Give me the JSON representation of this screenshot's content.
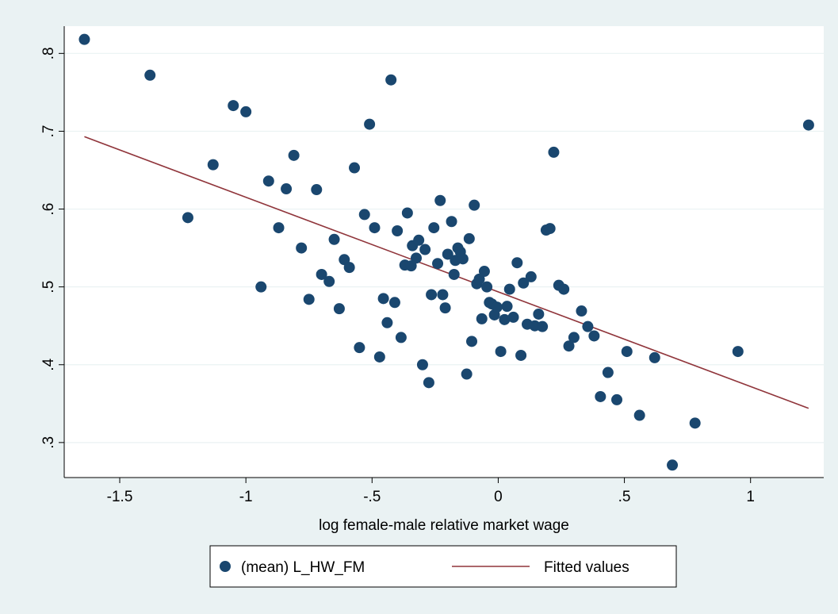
{
  "chart_data": {
    "type": "scatter",
    "xlabel": "log female-male relative market wage",
    "ylabel": "",
    "xlim": [
      -1.72,
      1.29
    ],
    "ylim": [
      0.255,
      0.835
    ],
    "xticks": [
      -1.5,
      -1,
      -0.5,
      0,
      0.5,
      1
    ],
    "xtick_labels": [
      "-1.5",
      "-1",
      "-.5",
      "0",
      ".5",
      "1"
    ],
    "yticks": [
      0.3,
      0.4,
      0.5,
      0.6,
      0.7,
      0.8
    ],
    "ytick_labels": [
      ".3",
      ".4",
      ".5",
      ".6",
      ".7",
      ".8"
    ],
    "grid": "horizontal",
    "legend_position": "bottom",
    "colors": {
      "background": "#eaf2f3",
      "plot_background": "#ffffff",
      "points": "#1a476f",
      "fit_line": "#90353b",
      "grid": "#eaf2f3"
    },
    "series": [
      {
        "name": "(mean) L_HW_FM",
        "kind": "scatter",
        "points": [
          [
            -1.64,
            0.818
          ],
          [
            -1.38,
            0.772
          ],
          [
            -1.23,
            0.589
          ],
          [
            -1.13,
            0.657
          ],
          [
            -1.05,
            0.733
          ],
          [
            -1.0,
            0.725
          ],
          [
            -0.94,
            0.5
          ],
          [
            -0.91,
            0.636
          ],
          [
            -0.87,
            0.576
          ],
          [
            -0.84,
            0.626
          ],
          [
            -0.81,
            0.669
          ],
          [
            -0.78,
            0.55
          ],
          [
            -0.75,
            0.484
          ],
          [
            -0.72,
            0.625
          ],
          [
            -0.7,
            0.516
          ],
          [
            -0.67,
            0.507
          ],
          [
            -0.65,
            0.561
          ],
          [
            -0.63,
            0.472
          ],
          [
            -0.61,
            0.535
          ],
          [
            -0.59,
            0.525
          ],
          [
            -0.57,
            0.653
          ],
          [
            -0.55,
            0.422
          ],
          [
            -0.53,
            0.593
          ],
          [
            -0.51,
            0.709
          ],
          [
            -0.49,
            0.576
          ],
          [
            -0.47,
            0.41
          ],
          [
            -0.455,
            0.485
          ],
          [
            -0.44,
            0.454
          ],
          [
            -0.425,
            0.766
          ],
          [
            -0.41,
            0.48
          ],
          [
            -0.4,
            0.572
          ],
          [
            -0.385,
            0.435
          ],
          [
            -0.37,
            0.528
          ],
          [
            -0.36,
            0.595
          ],
          [
            -0.345,
            0.527
          ],
          [
            -0.34,
            0.553
          ],
          [
            -0.325,
            0.537
          ],
          [
            -0.315,
            0.56
          ],
          [
            -0.3,
            0.4
          ],
          [
            -0.29,
            0.548
          ],
          [
            -0.275,
            0.377
          ],
          [
            -0.265,
            0.49
          ],
          [
            -0.255,
            0.576
          ],
          [
            -0.24,
            0.53
          ],
          [
            -0.23,
            0.611
          ],
          [
            -0.22,
            0.49
          ],
          [
            -0.21,
            0.473
          ],
          [
            -0.2,
            0.542
          ],
          [
            -0.185,
            0.584
          ],
          [
            -0.175,
            0.516
          ],
          [
            -0.17,
            0.534
          ],
          [
            -0.16,
            0.55
          ],
          [
            -0.15,
            0.545
          ],
          [
            -0.14,
            0.536
          ],
          [
            -0.125,
            0.388
          ],
          [
            -0.115,
            0.562
          ],
          [
            -0.105,
            0.43
          ],
          [
            -0.095,
            0.605
          ],
          [
            -0.085,
            0.504
          ],
          [
            -0.075,
            0.51
          ],
          [
            -0.065,
            0.459
          ],
          [
            -0.055,
            0.52
          ],
          [
            -0.045,
            0.5
          ],
          [
            -0.035,
            0.48
          ],
          [
            -0.025,
            0.478
          ],
          [
            -0.015,
            0.464
          ],
          [
            -0.005,
            0.474
          ],
          [
            0.01,
            0.417
          ],
          [
            0.025,
            0.458
          ],
          [
            0.035,
            0.475
          ],
          [
            0.045,
            0.497
          ],
          [
            0.06,
            0.461
          ],
          [
            0.075,
            0.531
          ],
          [
            0.09,
            0.412
          ],
          [
            0.1,
            0.505
          ],
          [
            0.115,
            0.452
          ],
          [
            0.13,
            0.513
          ],
          [
            0.145,
            0.45
          ],
          [
            0.16,
            0.465
          ],
          [
            0.175,
            0.449
          ],
          [
            0.19,
            0.573
          ],
          [
            0.205,
            0.575
          ],
          [
            0.22,
            0.673
          ],
          [
            0.24,
            0.502
          ],
          [
            0.26,
            0.497
          ],
          [
            0.28,
            0.424
          ],
          [
            0.3,
            0.435
          ],
          [
            0.33,
            0.469
          ],
          [
            0.355,
            0.449
          ],
          [
            0.38,
            0.437
          ],
          [
            0.405,
            0.359
          ],
          [
            0.435,
            0.39
          ],
          [
            0.47,
            0.355
          ],
          [
            0.51,
            0.417
          ],
          [
            0.56,
            0.335
          ],
          [
            0.62,
            0.409
          ],
          [
            0.69,
            0.271
          ],
          [
            0.78,
            0.325
          ],
          [
            0.95,
            0.417
          ],
          [
            1.23,
            0.708
          ]
        ]
      },
      {
        "name": "Fitted values",
        "kind": "line",
        "points": [
          [
            -1.64,
            0.693
          ],
          [
            1.23,
            0.344
          ]
        ]
      }
    ]
  },
  "legend": {
    "scatter_label": "(mean) L_HW_FM",
    "line_label": "Fitted values"
  }
}
